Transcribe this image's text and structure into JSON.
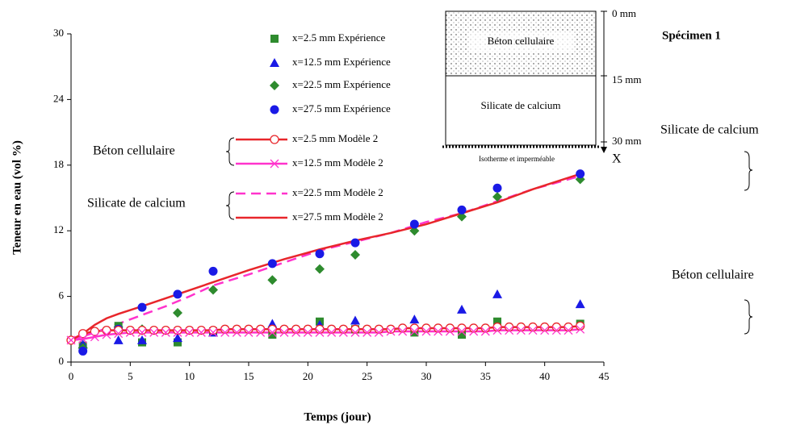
{
  "chart_data": {
    "type": "scatter-line",
    "xlabel": "Temps (jour)",
    "ylabel": "Teneur en eau (vol %)",
    "xlim": [
      0,
      45
    ],
    "xticks": [
      0,
      5,
      10,
      15,
      20,
      25,
      30,
      35,
      40,
      45
    ],
    "ylim": [
      0,
      30
    ],
    "yticks": [
      0,
      6,
      12,
      18,
      24,
      30
    ],
    "series": [
      {
        "name": "x=2.5 mm Expérience",
        "color": "#2e8b2e",
        "marker": "square",
        "line": "none",
        "x": [
          1,
          4,
          6,
          9,
          12,
          17,
          21,
          24,
          29,
          33,
          36,
          43
        ],
        "values": [
          1.5,
          3.3,
          1.8,
          1.8,
          2.8,
          2.5,
          3.7,
          3.0,
          2.7,
          2.5,
          3.7,
          3.5
        ]
      },
      {
        "name": "x=12.5 mm Expérience",
        "color": "#1a1ae6",
        "marker": "triangle",
        "line": "none",
        "x": [
          1,
          4,
          6,
          9,
          12,
          17,
          21,
          24,
          29,
          33,
          36,
          43
        ],
        "values": [
          1.6,
          2.0,
          2.0,
          2.2,
          2.7,
          3.5,
          3.4,
          3.8,
          3.9,
          4.8,
          6.2,
          5.3
        ]
      },
      {
        "name": "x=22.5 mm Expérience",
        "color": "#2e8b2e",
        "marker": "diamond",
        "line": "none",
        "x": [
          1,
          4,
          6,
          9,
          12,
          17,
          21,
          24,
          29,
          33,
          36,
          43
        ],
        "values": [
          1.3,
          3.2,
          3.0,
          4.5,
          6.6,
          7.5,
          8.5,
          9.8,
          12.0,
          13.3,
          15.1,
          16.7
        ]
      },
      {
        "name": "x=27.5 mm Expérience",
        "color": "#1a1ae6",
        "marker": "circle",
        "line": "none",
        "x": [
          1,
          4,
          6,
          9,
          12,
          17,
          21,
          24,
          29,
          33,
          36,
          43
        ],
        "values": [
          1.0,
          3.0,
          5.0,
          6.2,
          8.3,
          9.0,
          9.9,
          10.9,
          12.6,
          13.9,
          15.9,
          17.2
        ]
      },
      {
        "name": "x=2.5 mm Modèle 2",
        "color": "#e8262b",
        "marker": "open-circle",
        "line": "solid",
        "x": [
          0,
          1,
          2,
          3,
          4,
          5,
          6,
          7,
          8,
          9,
          10,
          11,
          12,
          13,
          14,
          15,
          16,
          17,
          18,
          19,
          20,
          21,
          22,
          23,
          24,
          25,
          26,
          27,
          28,
          29,
          30,
          31,
          32,
          33,
          34,
          35,
          36,
          37,
          38,
          39,
          40,
          41,
          42,
          43
        ],
        "values": [
          2.0,
          2.6,
          2.8,
          2.9,
          2.9,
          2.9,
          2.9,
          2.9,
          2.9,
          2.9,
          2.9,
          2.9,
          2.9,
          3.0,
          3.0,
          3.0,
          3.0,
          3.0,
          3.0,
          3.0,
          3.0,
          3.0,
          3.0,
          3.0,
          3.0,
          3.0,
          3.0,
          3.0,
          3.1,
          3.1,
          3.1,
          3.1,
          3.1,
          3.1,
          3.1,
          3.1,
          3.2,
          3.2,
          3.2,
          3.2,
          3.2,
          3.2,
          3.2,
          3.3
        ]
      },
      {
        "name": "x=12.5 mm Modèle 2",
        "color": "#ff33cc",
        "marker": "cross",
        "line": "solid",
        "x": [
          0,
          1,
          2,
          3,
          4,
          5,
          6,
          7,
          8,
          9,
          10,
          11,
          12,
          13,
          14,
          15,
          16,
          17,
          18,
          19,
          20,
          21,
          22,
          23,
          24,
          25,
          26,
          27,
          28,
          29,
          30,
          31,
          32,
          33,
          34,
          35,
          36,
          37,
          38,
          39,
          40,
          41,
          42,
          43
        ],
        "values": [
          2.0,
          2.1,
          2.3,
          2.5,
          2.6,
          2.7,
          2.7,
          2.7,
          2.7,
          2.7,
          2.7,
          2.7,
          2.7,
          2.7,
          2.7,
          2.7,
          2.7,
          2.7,
          2.7,
          2.7,
          2.7,
          2.7,
          2.7,
          2.7,
          2.7,
          2.7,
          2.7,
          2.8,
          2.8,
          2.8,
          2.8,
          2.8,
          2.8,
          2.8,
          2.8,
          2.8,
          2.9,
          2.9,
          2.9,
          2.9,
          2.9,
          2.9,
          2.9,
          3.0
        ]
      },
      {
        "name": "x=22.5 mm Modèle 2",
        "color": "#ff33cc",
        "marker": "none",
        "line": "dashed",
        "x": [
          0,
          2,
          4,
          6,
          8,
          10,
          12,
          15,
          18,
          21,
          24,
          27,
          30,
          33,
          36,
          39,
          43
        ],
        "values": [
          2.0,
          2.7,
          3.5,
          4.3,
          5.1,
          6.0,
          7.0,
          8.0,
          9.1,
          10.2,
          11.0,
          11.8,
          12.8,
          13.6,
          14.7,
          15.8,
          17.0
        ]
      },
      {
        "name": "x=27.5 mm Modèle 2",
        "color": "#e8262b",
        "marker": "none",
        "line": "solid",
        "x": [
          0,
          1,
          2,
          3,
          4,
          6,
          9,
          12,
          15,
          18,
          21,
          24,
          27,
          30,
          33,
          36,
          39,
          43
        ],
        "values": [
          2.0,
          2.6,
          3.4,
          4.0,
          4.4,
          5.1,
          6.2,
          7.3,
          8.4,
          9.4,
          10.3,
          11.1,
          11.8,
          12.6,
          13.6,
          14.6,
          15.8,
          17.2
        ]
      }
    ],
    "legend_groups": [
      "Béton cellulaire",
      "Silicate de calcium"
    ],
    "annotations": {
      "specimen": "Spécimen 1",
      "right_top": "Silicate de calcium",
      "right_bottom": "Béton cellulaire"
    },
    "inset": {
      "top_layer": "Béton cellulaire",
      "bottom_layer": "Silicate de calcium",
      "depth_top": "0 mm",
      "depth_mid": "15 mm",
      "depth_bottom": "30 mm",
      "boundary": "Isotherme et imperméable",
      "axis": "X"
    }
  }
}
